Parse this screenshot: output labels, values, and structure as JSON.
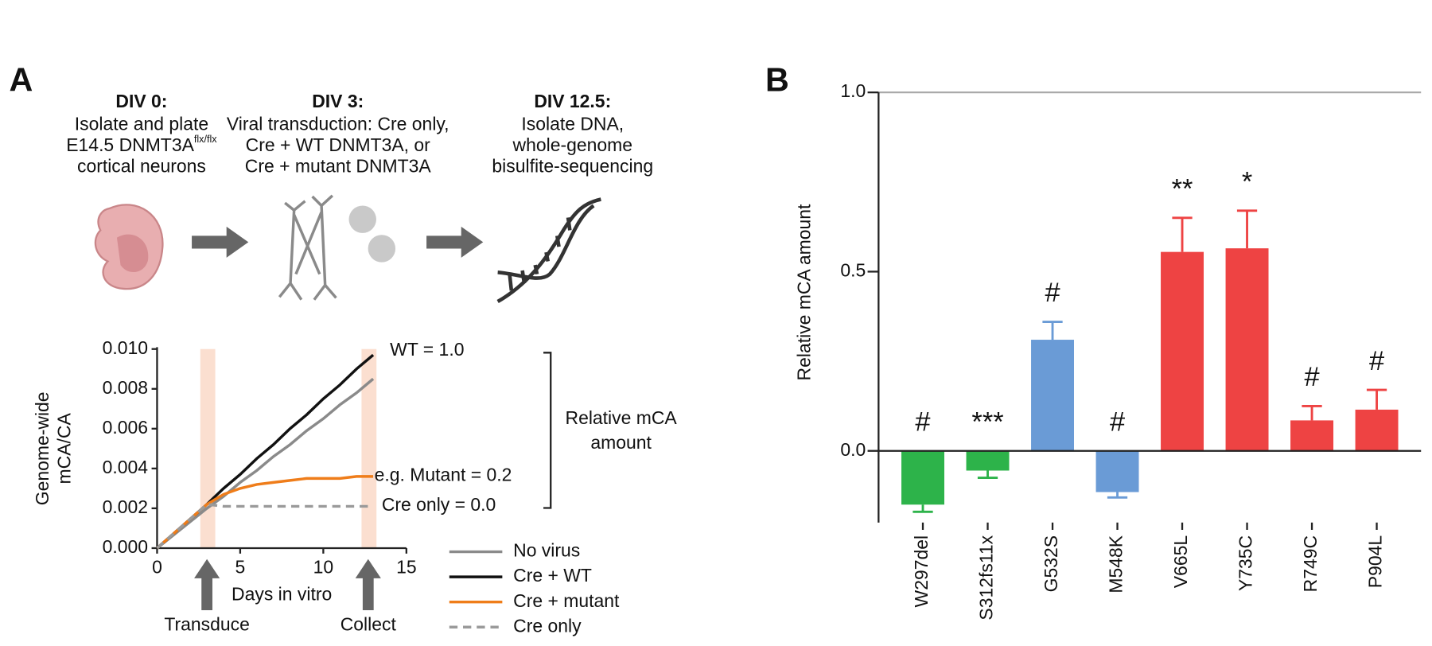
{
  "panel_labels": [
    "A",
    "B"
  ],
  "timeline": [
    {
      "title": "DIV 0:",
      "lines": [
        "Isolate and plate",
        "E14.5 DNMT3A",
        "cortical neurons"
      ],
      "superscript": "flx/flx"
    },
    {
      "title": "DIV 3:",
      "lines": [
        "Viral transduction: Cre only,",
        "Cre + WT DNMT3A, or",
        "Cre + mutant DNMT3A"
      ]
    },
    {
      "title": "DIV 12.5:",
      "lines": [
        "Isolate DNA,",
        "whole-genome",
        "bisulfite-sequencing"
      ]
    }
  ],
  "chart_data": [
    {
      "type": "line",
      "x": [
        0,
        3,
        4,
        5,
        6,
        7,
        8,
        9,
        10,
        11,
        12,
        13
      ],
      "series": [
        {
          "name": "No virus",
          "color": "#8a8a8a",
          "dash": false,
          "values": [
            0,
            0.002,
            0.0026,
            0.0033,
            0.0039,
            0.0046,
            0.0052,
            0.0059,
            0.0065,
            0.0072,
            0.0078,
            0.0085
          ]
        },
        {
          "name": "Cre + WT",
          "color": "#111111",
          "dash": false,
          "values": [
            0,
            0.0022,
            0.003,
            0.0037,
            0.0045,
            0.0052,
            0.006,
            0.0067,
            0.0075,
            0.0082,
            0.009,
            0.0097
          ]
        },
        {
          "name": "Cre + mutant",
          "color": "#ef7d1a",
          "dash": false,
          "values": [
            0,
            0.0022,
            0.0027,
            0.003,
            0.0032,
            0.0033,
            0.0034,
            0.0035,
            0.0035,
            0.0035,
            0.0036,
            0.0036
          ]
        },
        {
          "name": "Cre only",
          "color": "#9a9a9a",
          "dash": true,
          "values": [
            0,
            0.0022,
            0.0021,
            0.0021,
            0.0021,
            0.0021,
            0.0021,
            0.0021,
            0.0021,
            0.0021,
            0.0021,
            0.0021
          ]
        }
      ],
      "xlim": [
        0,
        15
      ],
      "xticks": [
        0,
        5,
        10,
        15
      ],
      "ylim": [
        0,
        0.01
      ],
      "yticks": [
        {
          "value": 0,
          "label": "0.000"
        },
        {
          "value": 0.002,
          "label": "0.002"
        },
        {
          "value": 0.004,
          "label": "0.004"
        },
        {
          "value": 0.006,
          "label": "0.006"
        },
        {
          "value": 0.008,
          "label": "0.008"
        },
        {
          "value": 0.01,
          "label": "0.010"
        }
      ],
      "xlabel": "Days in vitro",
      "ylabel": [
        "Genome-wide",
        "mCA/CA"
      ],
      "highlights": [
        [
          2.6,
          3.5
        ],
        [
          12.3,
          13.2
        ]
      ],
      "highlight_color": "#fbdfd0",
      "arrows": [
        {
          "x": 3,
          "label": "Transduce"
        },
        {
          "x": 12.7,
          "label": "Collect"
        }
      ],
      "annotations": [
        "WT = 1.0",
        "e.g. Mutant = 0.2",
        "Cre only = 0.0"
      ],
      "bracket_label": [
        "Relative mCA",
        "amount"
      ]
    },
    {
      "type": "bar",
      "categories": [
        "W297del",
        "S312fs11x",
        "G532S",
        "M548K",
        "V665L",
        "Y735C",
        "R749C",
        "P904L"
      ],
      "values": [
        -0.15,
        -0.055,
        0.31,
        -0.115,
        0.555,
        0.565,
        0.085,
        0.115
      ],
      "errors": [
        0.02,
        0.02,
        0.05,
        0.015,
        0.095,
        0.105,
        0.04,
        0.055
      ],
      "colors": [
        "#2db34a",
        "#2db34a",
        "#6a9bd6",
        "#6a9bd6",
        "#ee4343",
        "#ee4343",
        "#ee4343",
        "#ee4343"
      ],
      "significance": [
        "#",
        "***",
        "#",
        "#",
        "**",
        "*",
        "#",
        "#"
      ],
      "ylim": [
        -0.2,
        1.0
      ],
      "yticks": [
        {
          "value": 0,
          "label": "0.0"
        },
        {
          "value": 0.5,
          "label": "0.5"
        },
        {
          "value": 1,
          "label": "1.0"
        }
      ],
      "ylabel": "Relative mCA amount",
      "reference_line": 1
    }
  ]
}
